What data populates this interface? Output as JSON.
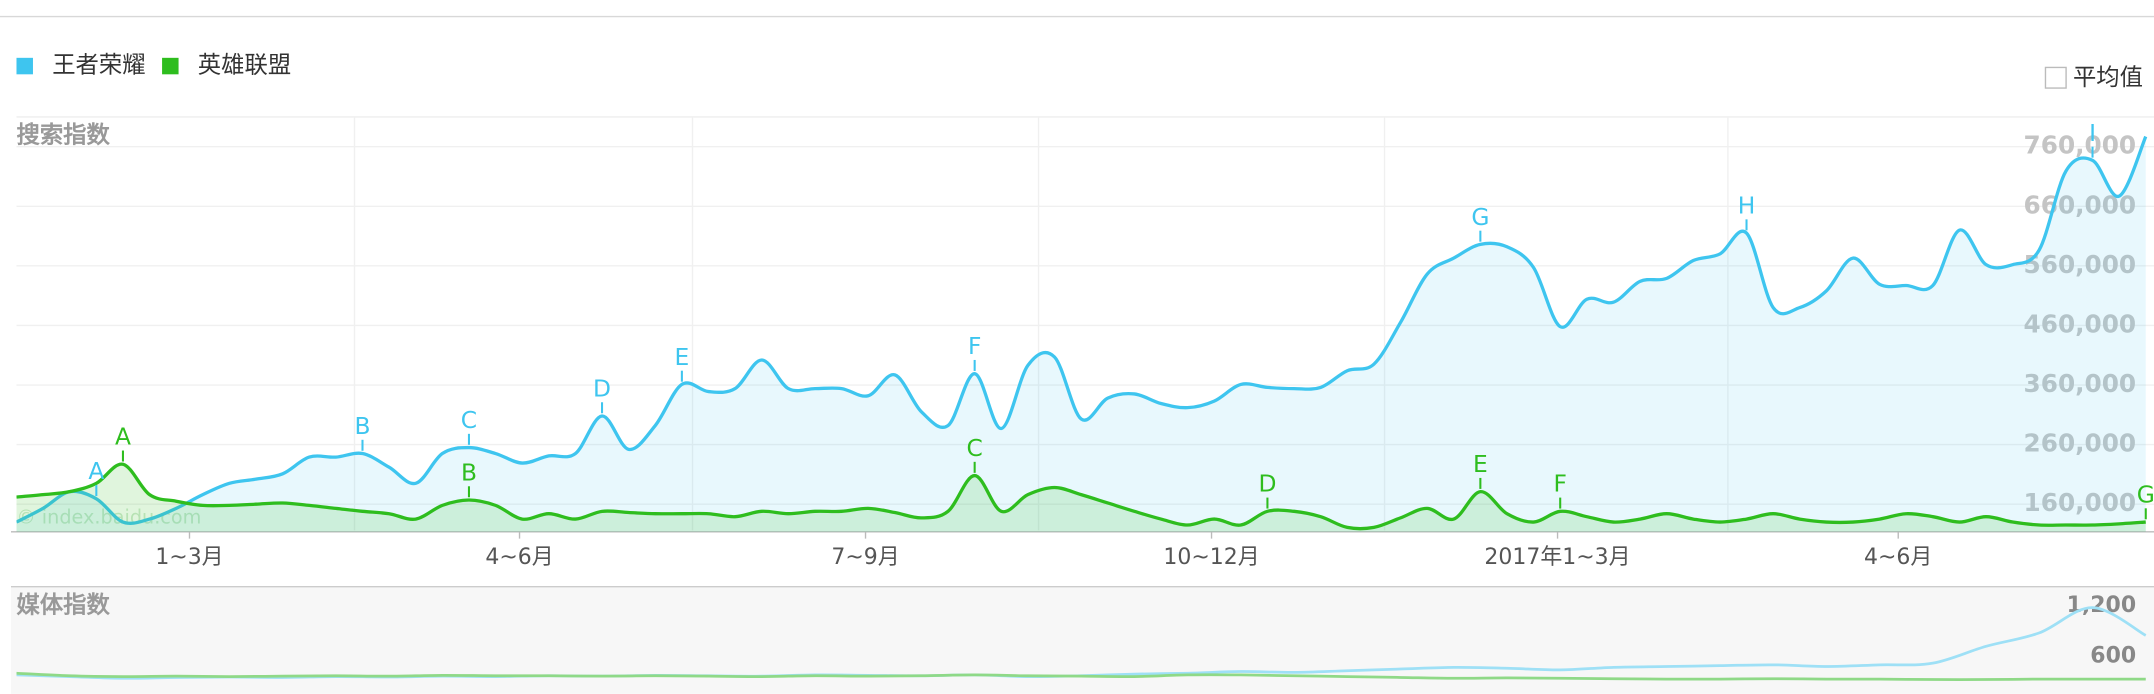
{
  "chart_data": [
    {
      "type": "line",
      "title": "搜索指数",
      "watermark": "© index.baidu.com",
      "average_toggle": "平均值",
      "x": [
        0,
        1,
        2,
        3,
        4,
        5,
        6,
        7,
        8,
        9,
        10,
        11,
        12,
        13,
        14,
        15,
        16,
        17,
        18,
        19,
        20,
        21,
        22,
        23,
        24,
        25,
        26,
        27,
        28,
        29,
        30,
        31,
        32,
        33,
        34,
        35,
        36,
        37,
        38,
        39,
        40,
        41,
        42,
        43,
        44,
        45,
        46,
        47,
        48,
        49,
        50,
        51,
        52,
        53,
        54,
        55,
        56,
        57,
        58,
        59,
        60,
        61,
        62,
        63,
        64,
        65,
        66,
        67,
        68,
        69,
        70,
        71,
        72,
        73,
        74,
        75,
        76,
        77,
        78,
        79,
        80
      ],
      "xlim": [
        0,
        80
      ],
      "xticks": [
        {
          "value": 6.5,
          "label": "1~3月"
        },
        {
          "value": 18.9,
          "label": "4~6月"
        },
        {
          "value": 31.9,
          "label": "7~9月"
        },
        {
          "value": 44.9,
          "label": "10~12月"
        },
        {
          "value": 57.9,
          "label": "2017年1~3月"
        },
        {
          "value": 70.7,
          "label": "4~6月"
        }
      ],
      "ylim": [
        116000,
        810000
      ],
      "yticks": [
        {
          "value": 160000,
          "label": "160,000"
        },
        {
          "value": 260000,
          "label": "260,000"
        },
        {
          "value": 360000,
          "label": "360,000"
        },
        {
          "value": 460000,
          "label": "460,000"
        },
        {
          "value": 560000,
          "label": "560,000"
        },
        {
          "value": 660000,
          "label": "660,000"
        },
        {
          "value": 760000,
          "label": "760,000"
        }
      ],
      "grid": true,
      "series": [
        {
          "name": "王者荣耀",
          "color": "#3ec5ef",
          "values": [
            130000,
            153000,
            181000,
            169000,
            130000,
            135000,
            153000,
            176000,
            195000,
            202000,
            211000,
            239000,
            239000,
            245000,
            222000,
            195000,
            245000,
            255000,
            245000,
            229000,
            241000,
            245000,
            308000,
            252000,
            292000,
            361000,
            349000,
            354000,
            402000,
            354000,
            354000,
            354000,
            342000,
            377000,
            315000,
            292000,
            379000,
            287000,
            393000,
            407000,
            303000,
            338000,
            345000,
            329000,
            322000,
            333000,
            361000,
            356000,
            354000,
            356000,
            384000,
            395000,
            465000,
            546000,
            573000,
            596000,
            592000,
            557000,
            458000,
            504000,
            499000,
            534000,
            539000,
            569000,
            580000,
            615000,
            490000,
            490000,
            518000,
            573000,
            529000,
            527000,
            527000,
            620000,
            562000,
            562000,
            587000,
            719000,
            737000,
            677000,
            777000
          ],
          "annotations": [
            {
              "label": "A",
              "x": 3
            },
            {
              "label": "B",
              "x": 13
            },
            {
              "label": "C",
              "x": 17
            },
            {
              "label": "D",
              "x": 22
            },
            {
              "label": "E",
              "x": 25
            },
            {
              "label": "F",
              "x": 36
            },
            {
              "label": "G",
              "x": 55
            },
            {
              "label": "H",
              "x": 65
            },
            {
              "label": "I",
              "x": 78
            }
          ]
        },
        {
          "name": "英雄联盟",
          "color": "#2ebd1e",
          "values": [
            172000,
            176000,
            181000,
            195000,
            227000,
            176000,
            165000,
            158000,
            158000,
            160000,
            162000,
            158000,
            153000,
            148000,
            144000,
            135000,
            158000,
            167000,
            158000,
            135000,
            144000,
            135000,
            148000,
            146000,
            144000,
            144000,
            144000,
            139000,
            148000,
            144000,
            148000,
            148000,
            153000,
            146000,
            137000,
            148000,
            208000,
            148000,
            176000,
            188000,
            176000,
            162000,
            148000,
            135000,
            125000,
            135000,
            125000,
            148000,
            148000,
            139000,
            121000,
            121000,
            137000,
            153000,
            135000,
            181000,
            144000,
            130000,
            148000,
            139000,
            130000,
            135000,
            144000,
            135000,
            130000,
            135000,
            144000,
            135000,
            130000,
            130000,
            135000,
            144000,
            139000,
            130000,
            139000,
            130000,
            125000,
            125000,
            125000,
            127000,
            130000
          ],
          "annotations": [
            {
              "label": "A",
              "x": 4
            },
            {
              "label": "B",
              "x": 17
            },
            {
              "label": "C",
              "x": 36
            },
            {
              "label": "D",
              "x": 47
            },
            {
              "label": "E",
              "x": 55
            },
            {
              "label": "F",
              "x": 58
            },
            {
              "label": "G",
              "x": 80
            }
          ]
        }
      ]
    },
    {
      "type": "line",
      "title": "媒体指数",
      "x": [
        0,
        2,
        4,
        6,
        8,
        10,
        12,
        14,
        16,
        18,
        20,
        22,
        24,
        26,
        28,
        30,
        32,
        34,
        36,
        38,
        40,
        42,
        44,
        46,
        48,
        50,
        52,
        54,
        56,
        58,
        60,
        62,
        64,
        66,
        68,
        70,
        72,
        74,
        76,
        78,
        80
      ],
      "xlim": [
        0,
        80
      ],
      "ylim": [
        220,
        1380
      ],
      "yticks": [
        600,
        {
          "value": 1200,
          "label": "1,200"
        }
      ],
      "series": [
        {
          "color": "#9ee0f6",
          "values": [
            380,
            360,
            340,
            350,
            355,
            350,
            360,
            355,
            365,
            360,
            370,
            365,
            375,
            370,
            365,
            380,
            375,
            370,
            380,
            360,
            370,
            390,
            400,
            420,
            410,
            430,
            450,
            470,
            460,
            440,
            470,
            480,
            490,
            500,
            480,
            500,
            520,
            720,
            880,
            1180,
            850
          ]
        },
        {
          "color": "#8fd987",
          "values": [
            400,
            370,
            360,
            365,
            360,
            365,
            370,
            365,
            375,
            370,
            370,
            365,
            370,
            365,
            360,
            370,
            365,
            370,
            380,
            370,
            365,
            360,
            380,
            380,
            370,
            360,
            350,
            340,
            345,
            340,
            335,
            330,
            330,
            335,
            330,
            330,
            325,
            325,
            330,
            330,
            330
          ]
        }
      ]
    }
  ]
}
